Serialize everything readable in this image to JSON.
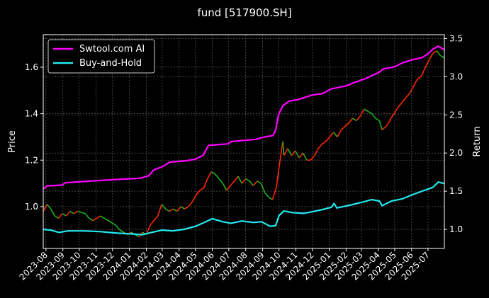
{
  "chart_data": {
    "type": "line",
    "title": "fund [517900.SH]",
    "ylabel_left": "Price",
    "ylabel_right": "Return",
    "grid": true,
    "legend_placement": "top-left",
    "x_range": [
      "2023-07-27",
      "2025-07-31"
    ],
    "x_ticks": [
      "2023-08",
      "2023-09",
      "2023-10",
      "2023-11",
      "2023-12",
      "2024-01",
      "2024-02",
      "2024-03",
      "2024-04",
      "2024-05",
      "2024-06",
      "2024-07",
      "2024-08",
      "2024-09",
      "2024-10",
      "2024-11",
      "2024-12",
      "2025-01",
      "2025-02",
      "2025-03",
      "2025-04",
      "2025-05",
      "2025-06",
      "2025-07"
    ],
    "y_left_range": [
      0.82,
      1.74
    ],
    "y_left_ticks": [
      1.0,
      1.2,
      1.4,
      1.6
    ],
    "y_right_range": [
      0.75,
      3.55
    ],
    "y_right_ticks": [
      1.0,
      1.5,
      2.0,
      2.5,
      3.0,
      3.5
    ],
    "price_up_color": "#ff2a00",
    "price_down_color": "#1db31d",
    "price_series": {
      "axis": "left",
      "points": [
        [
          "2023-07-27",
          0.98
        ],
        [
          "2023-08-03",
          1.01
        ],
        [
          "2023-08-10",
          0.99
        ],
        [
          "2023-08-17",
          0.96
        ],
        [
          "2023-08-24",
          0.95
        ],
        [
          "2023-08-31",
          0.97
        ],
        [
          "2023-09-07",
          0.96
        ],
        [
          "2023-09-14",
          0.98
        ],
        [
          "2023-09-21",
          0.97
        ],
        [
          "2023-09-28",
          0.98
        ],
        [
          "2023-10-12",
          0.97
        ],
        [
          "2023-10-19",
          0.95
        ],
        [
          "2023-10-26",
          0.94
        ],
        [
          "2023-11-02",
          0.95
        ],
        [
          "2023-11-09",
          0.96
        ],
        [
          "2023-11-16",
          0.95
        ],
        [
          "2023-11-23",
          0.94
        ],
        [
          "2023-11-30",
          0.93
        ],
        [
          "2023-12-07",
          0.92
        ],
        [
          "2023-12-14",
          0.9
        ],
        [
          "2023-12-21",
          0.89
        ],
        [
          "2023-12-28",
          0.88
        ],
        [
          "2024-01-04",
          0.89
        ],
        [
          "2024-01-11",
          0.88
        ],
        [
          "2024-01-18",
          0.87
        ],
        [
          "2024-01-25",
          0.89
        ],
        [
          "2024-02-01",
          0.88
        ],
        [
          "2024-02-08",
          0.92
        ],
        [
          "2024-02-22",
          0.96
        ],
        [
          "2024-02-29",
          1.01
        ],
        [
          "2024-03-07",
          0.99
        ],
        [
          "2024-03-14",
          0.98
        ],
        [
          "2024-03-21",
          0.99
        ],
        [
          "2024-03-28",
          0.98
        ],
        [
          "2024-04-04",
          1.0
        ],
        [
          "2024-04-11",
          0.99
        ],
        [
          "2024-04-18",
          1.0
        ],
        [
          "2024-04-25",
          1.02
        ],
        [
          "2024-05-02",
          1.05
        ],
        [
          "2024-05-09",
          1.07
        ],
        [
          "2024-05-16",
          1.08
        ],
        [
          "2024-05-23",
          1.12
        ],
        [
          "2024-05-30",
          1.15
        ],
        [
          "2024-06-06",
          1.14
        ],
        [
          "2024-06-13",
          1.12
        ],
        [
          "2024-06-20",
          1.1
        ],
        [
          "2024-06-27",
          1.07
        ],
        [
          "2024-07-04",
          1.09
        ],
        [
          "2024-07-11",
          1.11
        ],
        [
          "2024-07-18",
          1.13
        ],
        [
          "2024-07-25",
          1.1
        ],
        [
          "2024-08-01",
          1.12
        ],
        [
          "2024-08-08",
          1.11
        ],
        [
          "2024-08-15",
          1.09
        ],
        [
          "2024-08-22",
          1.11
        ],
        [
          "2024-08-29",
          1.1
        ],
        [
          "2024-09-05",
          1.06
        ],
        [
          "2024-09-12",
          1.04
        ],
        [
          "2024-09-19",
          1.03
        ],
        [
          "2024-09-26",
          1.08
        ],
        [
          "2024-09-30",
          1.15
        ],
        [
          "2024-10-08",
          1.28
        ],
        [
          "2024-10-10",
          1.22
        ],
        [
          "2024-10-17",
          1.25
        ],
        [
          "2024-10-24",
          1.22
        ],
        [
          "2024-10-31",
          1.24
        ],
        [
          "2024-11-07",
          1.21
        ],
        [
          "2024-11-14",
          1.23
        ],
        [
          "2024-11-21",
          1.2
        ],
        [
          "2024-11-28",
          1.2
        ],
        [
          "2024-12-05",
          1.22
        ],
        [
          "2024-12-12",
          1.25
        ],
        [
          "2024-12-19",
          1.27
        ],
        [
          "2024-12-26",
          1.28
        ],
        [
          "2025-01-02",
          1.3
        ],
        [
          "2025-01-09",
          1.32
        ],
        [
          "2025-01-16",
          1.3
        ],
        [
          "2025-01-23",
          1.33
        ],
        [
          "2025-02-06",
          1.36
        ],
        [
          "2025-02-13",
          1.38
        ],
        [
          "2025-02-20",
          1.37
        ],
        [
          "2025-02-27",
          1.39
        ],
        [
          "2025-03-06",
          1.42
        ],
        [
          "2025-03-13",
          1.41
        ],
        [
          "2025-03-20",
          1.4
        ],
        [
          "2025-03-27",
          1.38
        ],
        [
          "2025-04-03",
          1.37
        ],
        [
          "2025-04-08",
          1.33
        ],
        [
          "2025-04-17",
          1.35
        ],
        [
          "2025-04-24",
          1.38
        ],
        [
          "2025-04-30",
          1.4
        ],
        [
          "2025-05-08",
          1.43
        ],
        [
          "2025-05-15",
          1.45
        ],
        [
          "2025-05-22",
          1.47
        ],
        [
          "2025-05-29",
          1.49
        ],
        [
          "2025-06-05",
          1.52
        ],
        [
          "2025-06-12",
          1.55
        ],
        [
          "2025-06-19",
          1.56
        ],
        [
          "2025-06-26",
          1.6
        ],
        [
          "2025-07-03",
          1.63
        ],
        [
          "2025-07-10",
          1.66
        ],
        [
          "2025-07-17",
          1.67
        ],
        [
          "2025-07-24",
          1.65
        ],
        [
          "2025-07-31",
          1.64
        ]
      ]
    },
    "series": [
      {
        "name": "Swtool.com AI",
        "color": "#ff00ff",
        "axis": "right",
        "points": [
          [
            "2023-07-27",
            1.53
          ],
          [
            "2023-08-03",
            1.57
          ],
          [
            "2023-08-31",
            1.58
          ],
          [
            "2023-09-05",
            1.61
          ],
          [
            "2023-10-15",
            1.63
          ],
          [
            "2023-12-01",
            1.65
          ],
          [
            "2024-01-20",
            1.67
          ],
          [
            "2024-02-05",
            1.7
          ],
          [
            "2024-02-15",
            1.78
          ],
          [
            "2024-03-01",
            1.82
          ],
          [
            "2024-03-15",
            1.88
          ],
          [
            "2024-04-15",
            1.9
          ],
          [
            "2024-05-01",
            1.92
          ],
          [
            "2024-05-15",
            1.97
          ],
          [
            "2024-05-25",
            2.1
          ],
          [
            "2024-06-30",
            2.12
          ],
          [
            "2024-07-05",
            2.15
          ],
          [
            "2024-08-20",
            2.18
          ],
          [
            "2024-08-30",
            2.2
          ],
          [
            "2024-09-20",
            2.23
          ],
          [
            "2024-09-25",
            2.3
          ],
          [
            "2024-09-30",
            2.5
          ],
          [
            "2024-10-08",
            2.62
          ],
          [
            "2024-10-20",
            2.68
          ],
          [
            "2024-11-05",
            2.7
          ],
          [
            "2024-12-01",
            2.76
          ],
          [
            "2024-12-20",
            2.78
          ],
          [
            "2025-01-05",
            2.84
          ],
          [
            "2025-02-01",
            2.88
          ],
          [
            "2025-02-15",
            2.92
          ],
          [
            "2025-03-10",
            2.98
          ],
          [
            "2025-03-25",
            3.03
          ],
          [
            "2025-04-01",
            3.05
          ],
          [
            "2025-04-10",
            3.1
          ],
          [
            "2025-05-01",
            3.13
          ],
          [
            "2025-05-15",
            3.18
          ],
          [
            "2025-06-01",
            3.22
          ],
          [
            "2025-06-20",
            3.25
          ],
          [
            "2025-07-01",
            3.3
          ],
          [
            "2025-07-10",
            3.36
          ],
          [
            "2025-07-20",
            3.4
          ],
          [
            "2025-07-31",
            3.35
          ]
        ]
      },
      {
        "name": "Buy-and-Hold",
        "color": "#22e8f0",
        "axis": "right",
        "points": [
          [
            "2023-07-27",
            1.0
          ],
          [
            "2023-08-10",
            0.99
          ],
          [
            "2023-08-25",
            0.96
          ],
          [
            "2023-09-10",
            0.98
          ],
          [
            "2023-10-10",
            0.98
          ],
          [
            "2023-11-10",
            0.97
          ],
          [
            "2023-12-10",
            0.95
          ],
          [
            "2024-01-05",
            0.94
          ],
          [
            "2024-01-25",
            0.93
          ],
          [
            "2024-02-10",
            0.96
          ],
          [
            "2024-03-01",
            0.99
          ],
          [
            "2024-03-20",
            0.98
          ],
          [
            "2024-04-10",
            1.0
          ],
          [
            "2024-05-01",
            1.04
          ],
          [
            "2024-05-20",
            1.1
          ],
          [
            "2024-06-01",
            1.14
          ],
          [
            "2024-06-20",
            1.1
          ],
          [
            "2024-07-05",
            1.08
          ],
          [
            "2024-07-25",
            1.11
          ],
          [
            "2024-08-15",
            1.09
          ],
          [
            "2024-08-30",
            1.1
          ],
          [
            "2024-09-15",
            1.04
          ],
          [
            "2024-09-25",
            1.05
          ],
          [
            "2024-10-01",
            1.18
          ],
          [
            "2024-10-10",
            1.24
          ],
          [
            "2024-10-25",
            1.22
          ],
          [
            "2024-11-15",
            1.21
          ],
          [
            "2024-12-01",
            1.23
          ],
          [
            "2024-12-20",
            1.26
          ],
          [
            "2025-01-05",
            1.29
          ],
          [
            "2025-01-10",
            1.34
          ],
          [
            "2025-01-15",
            1.28
          ],
          [
            "2025-02-10",
            1.32
          ],
          [
            "2025-03-05",
            1.36
          ],
          [
            "2025-03-20",
            1.39
          ],
          [
            "2025-04-03",
            1.37
          ],
          [
            "2025-04-08",
            1.31
          ],
          [
            "2025-04-25",
            1.37
          ],
          [
            "2025-05-15",
            1.4
          ],
          [
            "2025-06-01",
            1.45
          ],
          [
            "2025-06-20",
            1.5
          ],
          [
            "2025-07-10",
            1.55
          ],
          [
            "2025-07-20",
            1.62
          ],
          [
            "2025-07-31",
            1.6
          ]
        ]
      }
    ]
  }
}
